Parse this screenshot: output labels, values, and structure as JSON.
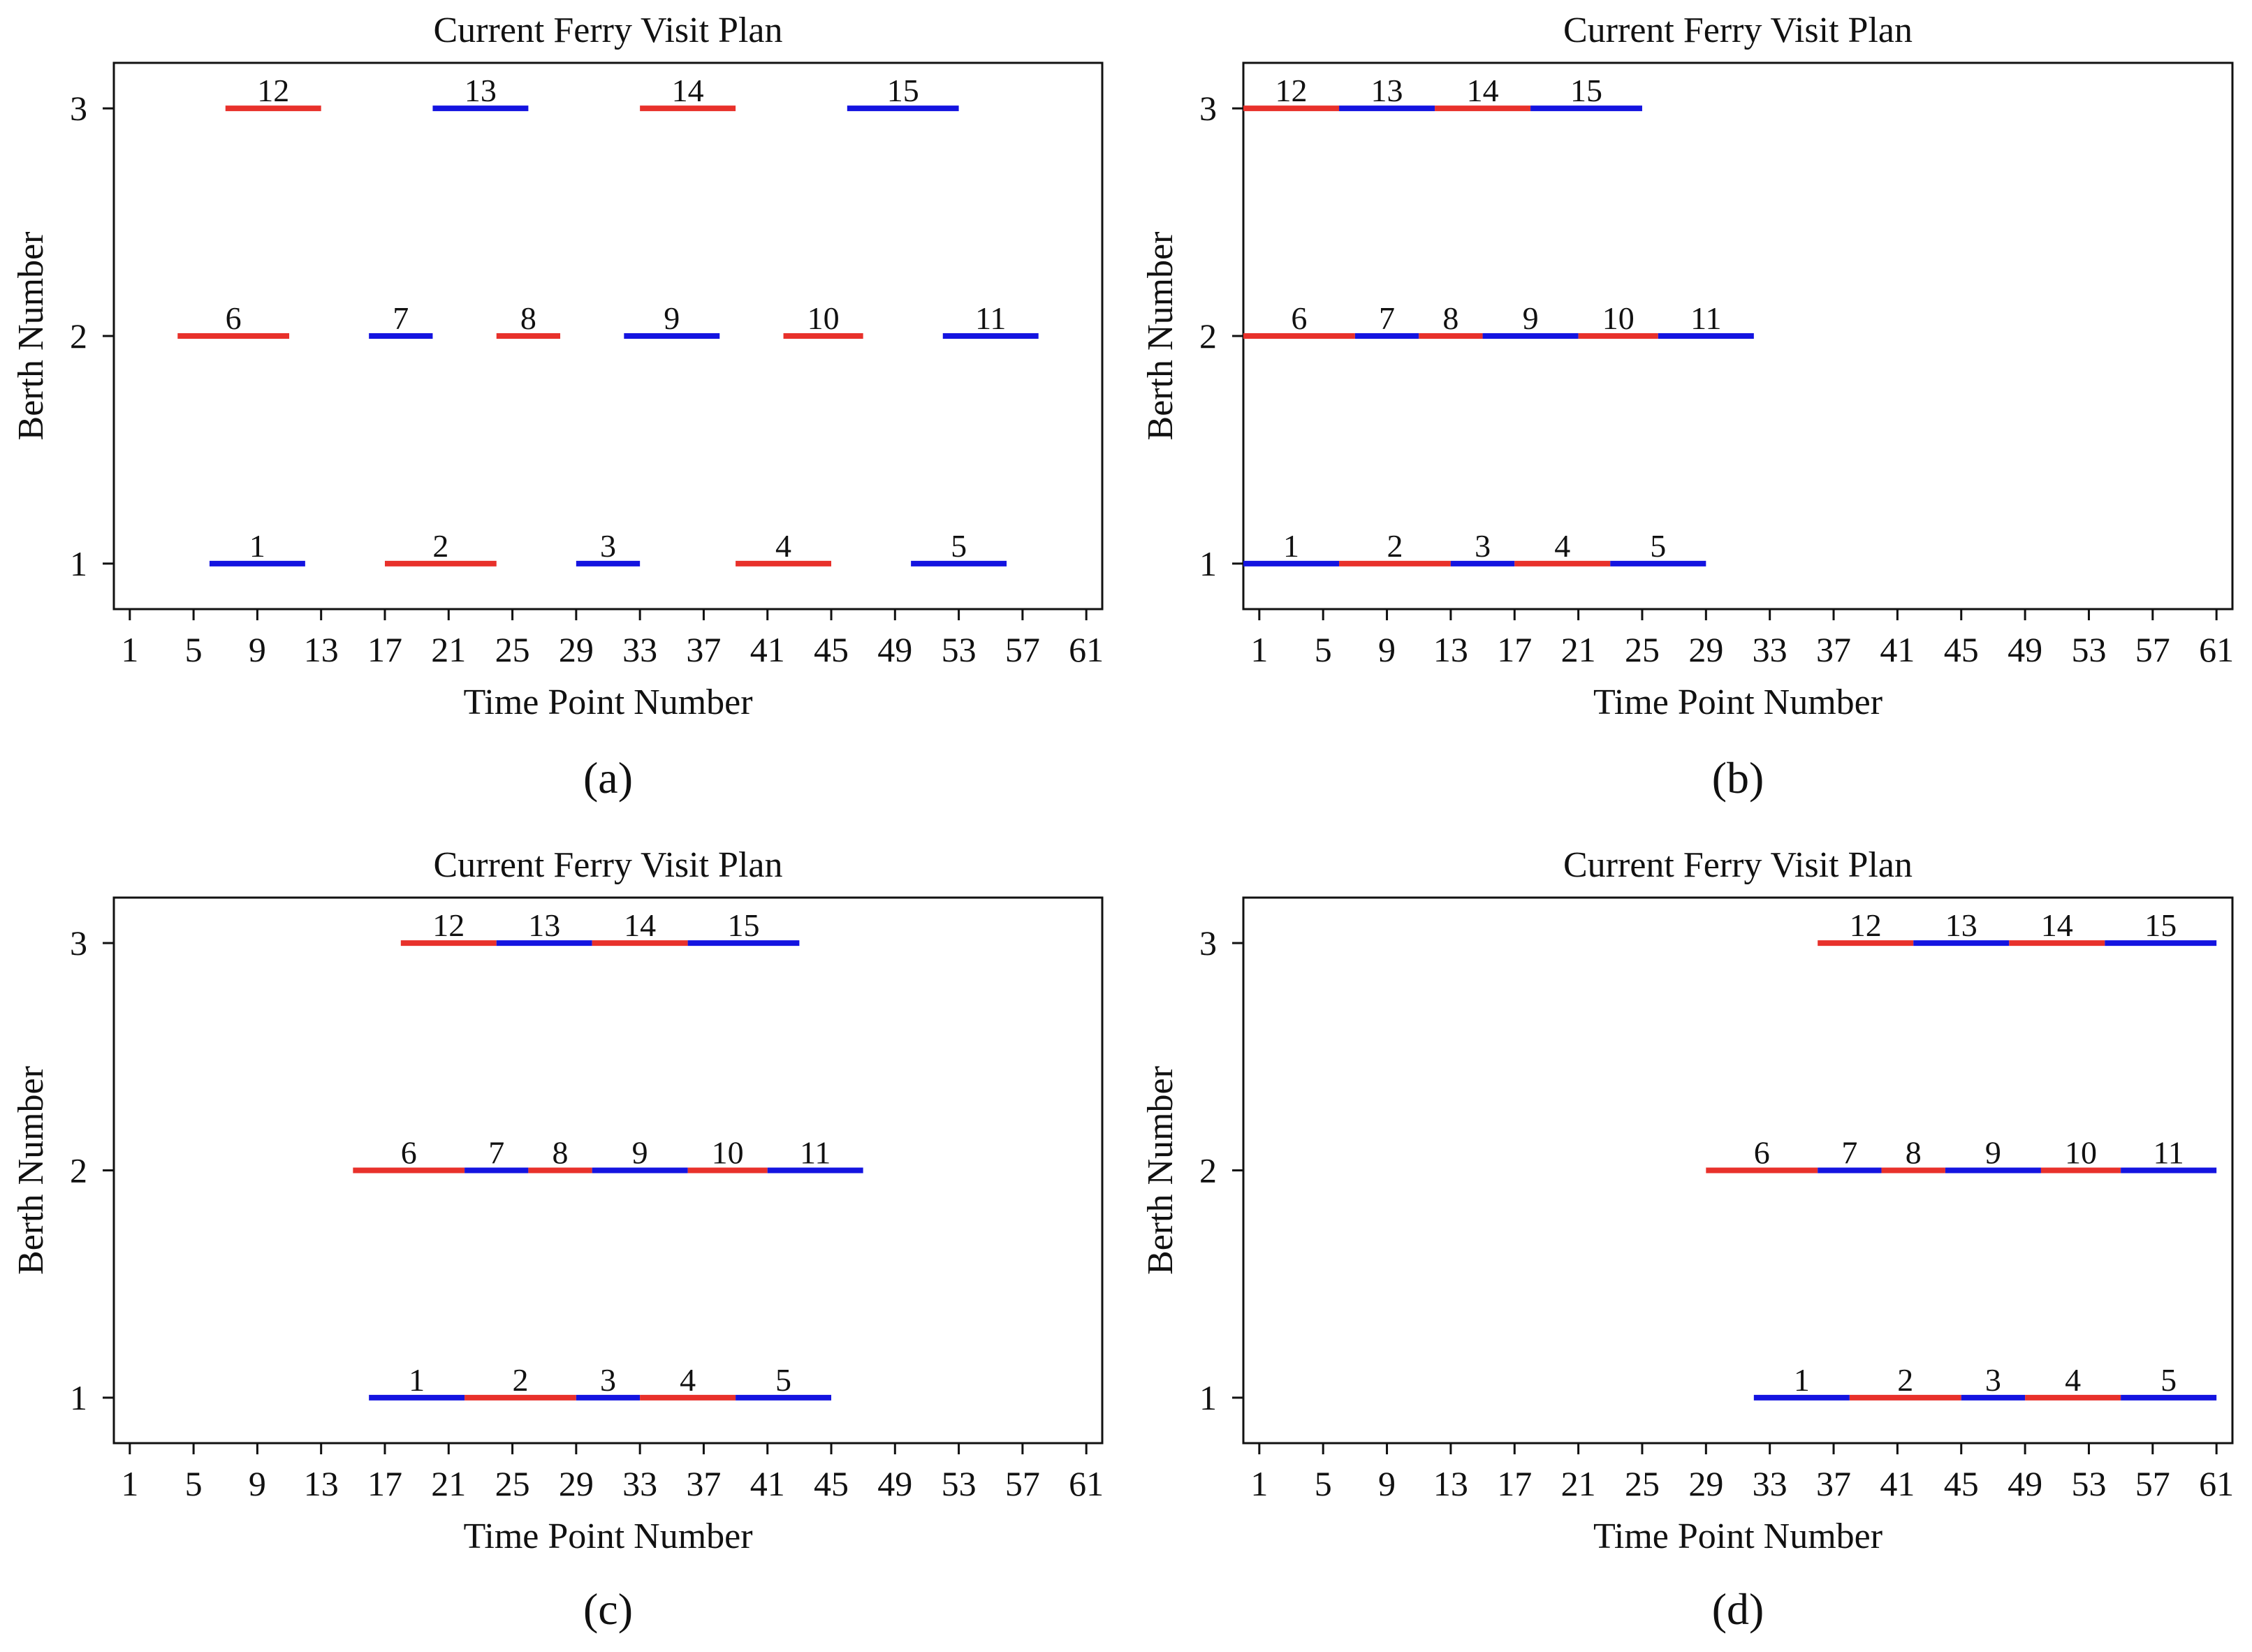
{
  "colors": {
    "red": "#e8312b",
    "blue": "#1414e0"
  },
  "chart_data": [
    {
      "type": "gantt",
      "panel": "a",
      "caption": "(a)",
      "title": "Current Ferry Visit Plan",
      "xlabel": "Time Point Number",
      "ylabel": "Berth Number",
      "xlim": [
        0,
        62
      ],
      "ylim": [
        0.8,
        3.2
      ],
      "xticks": [
        1,
        5,
        9,
        13,
        17,
        21,
        25,
        29,
        33,
        37,
        41,
        45,
        49,
        53,
        57,
        61
      ],
      "yticks": [
        1,
        2,
        3
      ],
      "segments": [
        {
          "id": "1",
          "berth": 1,
          "start": 6,
          "end": 12,
          "color": "blue"
        },
        {
          "id": "2",
          "berth": 1,
          "start": 17,
          "end": 24,
          "color": "red"
        },
        {
          "id": "3",
          "berth": 1,
          "start": 29,
          "end": 33,
          "color": "blue"
        },
        {
          "id": "4",
          "berth": 1,
          "start": 39,
          "end": 45,
          "color": "red"
        },
        {
          "id": "5",
          "berth": 1,
          "start": 50,
          "end": 56,
          "color": "blue"
        },
        {
          "id": "6",
          "berth": 2,
          "start": 4,
          "end": 11,
          "color": "red"
        },
        {
          "id": "7",
          "berth": 2,
          "start": 16,
          "end": 20,
          "color": "blue"
        },
        {
          "id": "8",
          "berth": 2,
          "start": 24,
          "end": 28,
          "color": "red"
        },
        {
          "id": "9",
          "berth": 2,
          "start": 32,
          "end": 38,
          "color": "blue"
        },
        {
          "id": "10",
          "berth": 2,
          "start": 42,
          "end": 47,
          "color": "red"
        },
        {
          "id": "11",
          "berth": 2,
          "start": 52,
          "end": 58,
          "color": "blue"
        },
        {
          "id": "12",
          "berth": 3,
          "start": 7,
          "end": 13,
          "color": "red"
        },
        {
          "id": "13",
          "berth": 3,
          "start": 20,
          "end": 26,
          "color": "blue"
        },
        {
          "id": "14",
          "berth": 3,
          "start": 33,
          "end": 39,
          "color": "red"
        },
        {
          "id": "15",
          "berth": 3,
          "start": 46,
          "end": 53,
          "color": "blue"
        }
      ]
    },
    {
      "type": "gantt",
      "panel": "b",
      "caption": "(b)",
      "title": "Current Ferry Visit Plan",
      "xlabel": "Time Point Number",
      "ylabel": "Berth Number",
      "xlim": [
        0,
        62
      ],
      "ylim": [
        0.8,
        3.2
      ],
      "xticks": [
        1,
        5,
        9,
        13,
        17,
        21,
        25,
        29,
        33,
        37,
        41,
        45,
        49,
        53,
        57,
        61
      ],
      "yticks": [
        1,
        2,
        3
      ],
      "segments": [
        {
          "id": "1",
          "berth": 1,
          "start": 0,
          "end": 6,
          "color": "blue"
        },
        {
          "id": "2",
          "berth": 1,
          "start": 6,
          "end": 13,
          "color": "red"
        },
        {
          "id": "3",
          "berth": 1,
          "start": 13,
          "end": 17,
          "color": "blue"
        },
        {
          "id": "4",
          "berth": 1,
          "start": 17,
          "end": 23,
          "color": "red"
        },
        {
          "id": "5",
          "berth": 1,
          "start": 23,
          "end": 29,
          "color": "blue"
        },
        {
          "id": "6",
          "berth": 2,
          "start": 0,
          "end": 7,
          "color": "red"
        },
        {
          "id": "7",
          "berth": 2,
          "start": 7,
          "end": 11,
          "color": "blue"
        },
        {
          "id": "8",
          "berth": 2,
          "start": 11,
          "end": 15,
          "color": "red"
        },
        {
          "id": "9",
          "berth": 2,
          "start": 15,
          "end": 21,
          "color": "blue"
        },
        {
          "id": "10",
          "berth": 2,
          "start": 21,
          "end": 26,
          "color": "red"
        },
        {
          "id": "11",
          "berth": 2,
          "start": 26,
          "end": 32,
          "color": "blue"
        },
        {
          "id": "12",
          "berth": 3,
          "start": 0,
          "end": 6,
          "color": "red"
        },
        {
          "id": "13",
          "berth": 3,
          "start": 6,
          "end": 12,
          "color": "blue"
        },
        {
          "id": "14",
          "berth": 3,
          "start": 12,
          "end": 18,
          "color": "red"
        },
        {
          "id": "15",
          "berth": 3,
          "start": 18,
          "end": 25,
          "color": "blue"
        }
      ]
    },
    {
      "type": "gantt",
      "panel": "c",
      "caption": "(c)",
      "title": "Current Ferry Visit Plan",
      "xlabel": "Time Point Number",
      "ylabel": "Berth Number",
      "xlim": [
        0,
        62
      ],
      "ylim": [
        0.8,
        3.2
      ],
      "xticks": [
        1,
        5,
        9,
        13,
        17,
        21,
        25,
        29,
        33,
        37,
        41,
        45,
        49,
        53,
        57,
        61
      ],
      "yticks": [
        1,
        2,
        3
      ],
      "segments": [
        {
          "id": "1",
          "berth": 1,
          "start": 16,
          "end": 22,
          "color": "blue"
        },
        {
          "id": "2",
          "berth": 1,
          "start": 22,
          "end": 29,
          "color": "red"
        },
        {
          "id": "3",
          "berth": 1,
          "start": 29,
          "end": 33,
          "color": "blue"
        },
        {
          "id": "4",
          "berth": 1,
          "start": 33,
          "end": 39,
          "color": "red"
        },
        {
          "id": "5",
          "berth": 1,
          "start": 39,
          "end": 45,
          "color": "blue"
        },
        {
          "id": "6",
          "berth": 2,
          "start": 15,
          "end": 22,
          "color": "red"
        },
        {
          "id": "7",
          "berth": 2,
          "start": 22,
          "end": 26,
          "color": "blue"
        },
        {
          "id": "8",
          "berth": 2,
          "start": 26,
          "end": 30,
          "color": "red"
        },
        {
          "id": "9",
          "berth": 2,
          "start": 30,
          "end": 36,
          "color": "blue"
        },
        {
          "id": "10",
          "berth": 2,
          "start": 36,
          "end": 41,
          "color": "red"
        },
        {
          "id": "11",
          "berth": 2,
          "start": 41,
          "end": 47,
          "color": "blue"
        },
        {
          "id": "12",
          "berth": 3,
          "start": 18,
          "end": 24,
          "color": "red"
        },
        {
          "id": "13",
          "berth": 3,
          "start": 24,
          "end": 30,
          "color": "blue"
        },
        {
          "id": "14",
          "berth": 3,
          "start": 30,
          "end": 36,
          "color": "red"
        },
        {
          "id": "15",
          "berth": 3,
          "start": 36,
          "end": 43,
          "color": "blue"
        }
      ]
    },
    {
      "type": "gantt",
      "panel": "d",
      "caption": "(d)",
      "title": "Current Ferry Visit Plan",
      "xlabel": "Time Point Number",
      "ylabel": "Berth Number",
      "xlim": [
        0,
        62
      ],
      "ylim": [
        0.8,
        3.2
      ],
      "xticks": [
        1,
        5,
        9,
        13,
        17,
        21,
        25,
        29,
        33,
        37,
        41,
        45,
        49,
        53,
        57,
        61
      ],
      "yticks": [
        1,
        2,
        3
      ],
      "segments": [
        {
          "id": "1",
          "berth": 1,
          "start": 32,
          "end": 38,
          "color": "blue"
        },
        {
          "id": "2",
          "berth": 1,
          "start": 38,
          "end": 45,
          "color": "red"
        },
        {
          "id": "3",
          "berth": 1,
          "start": 45,
          "end": 49,
          "color": "blue"
        },
        {
          "id": "4",
          "berth": 1,
          "start": 49,
          "end": 55,
          "color": "red"
        },
        {
          "id": "5",
          "berth": 1,
          "start": 55,
          "end": 61,
          "color": "blue"
        },
        {
          "id": "6",
          "berth": 2,
          "start": 29,
          "end": 36,
          "color": "red"
        },
        {
          "id": "7",
          "berth": 2,
          "start": 36,
          "end": 40,
          "color": "blue"
        },
        {
          "id": "8",
          "berth": 2,
          "start": 40,
          "end": 44,
          "color": "red"
        },
        {
          "id": "9",
          "berth": 2,
          "start": 44,
          "end": 50,
          "color": "blue"
        },
        {
          "id": "10",
          "berth": 2,
          "start": 50,
          "end": 55,
          "color": "red"
        },
        {
          "id": "11",
          "berth": 2,
          "start": 55,
          "end": 61,
          "color": "blue"
        },
        {
          "id": "12",
          "berth": 3,
          "start": 36,
          "end": 42,
          "color": "red"
        },
        {
          "id": "13",
          "berth": 3,
          "start": 42,
          "end": 48,
          "color": "blue"
        },
        {
          "id": "14",
          "berth": 3,
          "start": 48,
          "end": 54,
          "color": "red"
        },
        {
          "id": "15",
          "berth": 3,
          "start": 54,
          "end": 61,
          "color": "blue"
        }
      ]
    }
  ]
}
